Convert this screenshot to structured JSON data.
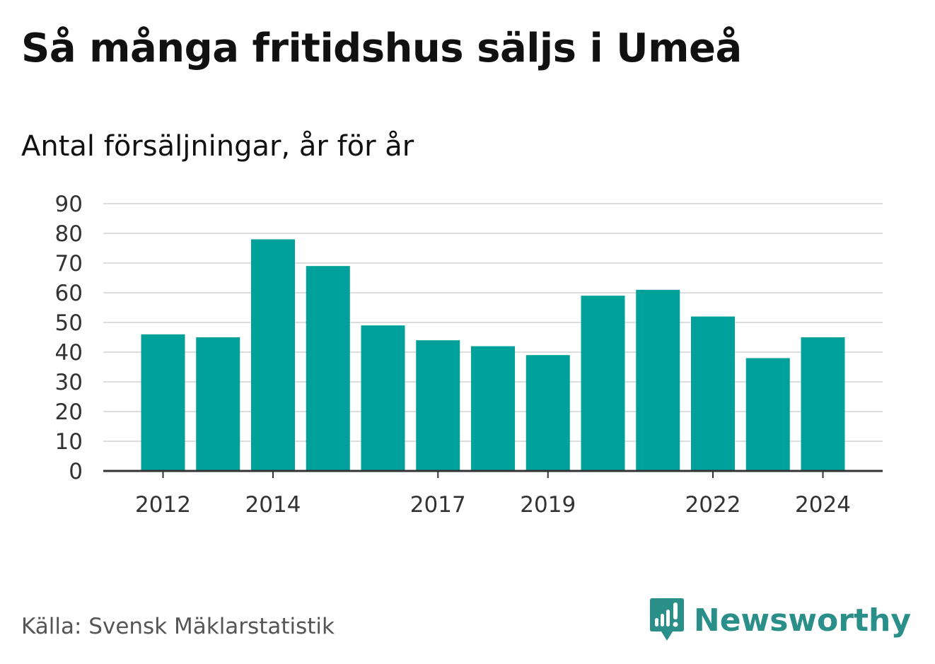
{
  "title": "Så många fritidshus säljs i Umeå",
  "subtitle": "Antal försäljningar, år för år",
  "source": "Källa: Svensk Mäklarstatistik",
  "brand": {
    "name": "Newsworthy",
    "icon": "newsworthy-logo-icon"
  },
  "colors": {
    "bar": "#00a19a",
    "grid": "#dddddd",
    "axis": "#333333",
    "brand": "#2a8f89"
  },
  "chart_data": {
    "type": "bar",
    "title": "Så många fritidshus säljs i Umeå",
    "subtitle": "Antal försäljningar, år för år",
    "categories": [
      2012,
      2013,
      2014,
      2015,
      2016,
      2017,
      2018,
      2019,
      2020,
      2021,
      2022,
      2023,
      2024
    ],
    "values": [
      46,
      45,
      78,
      69,
      49,
      44,
      42,
      39,
      59,
      61,
      52,
      38,
      45
    ],
    "x_tick_labels": [
      "2012",
      "2014",
      "2017",
      "2019",
      "2022",
      "2024"
    ],
    "y_ticks": [
      0,
      10,
      20,
      30,
      40,
      50,
      60,
      70,
      80,
      90
    ],
    "ylim": [
      0,
      90
    ],
    "grid": true,
    "legend": "none"
  }
}
